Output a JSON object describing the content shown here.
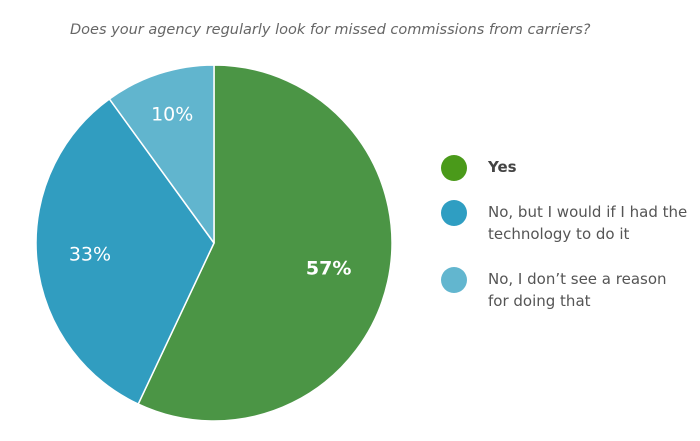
{
  "chart_data": {
    "type": "pie",
    "title": "Does your agency regularly look for missed commissions from carriers?",
    "slices": [
      {
        "label": "Yes",
        "value": 57,
        "value_label": "57%",
        "color": "#4b9545",
        "legend_color": "#4a9a1a",
        "emphasis": true
      },
      {
        "label": "No, but I would if I had the technology to do it",
        "value": 33,
        "value_label": "33%",
        "color": "#319dc0",
        "legend_color": "#2f9ec2",
        "emphasis": false
      },
      {
        "label": "No, I don’t see a reason for doing that",
        "value": 10,
        "value_label": "10%",
        "color": "#61b5ce",
        "legend_color": "#62b6cf",
        "emphasis": false
      }
    ],
    "legend_position": "right",
    "start_angle": "12 o'clock",
    "direction": "clockwise"
  }
}
